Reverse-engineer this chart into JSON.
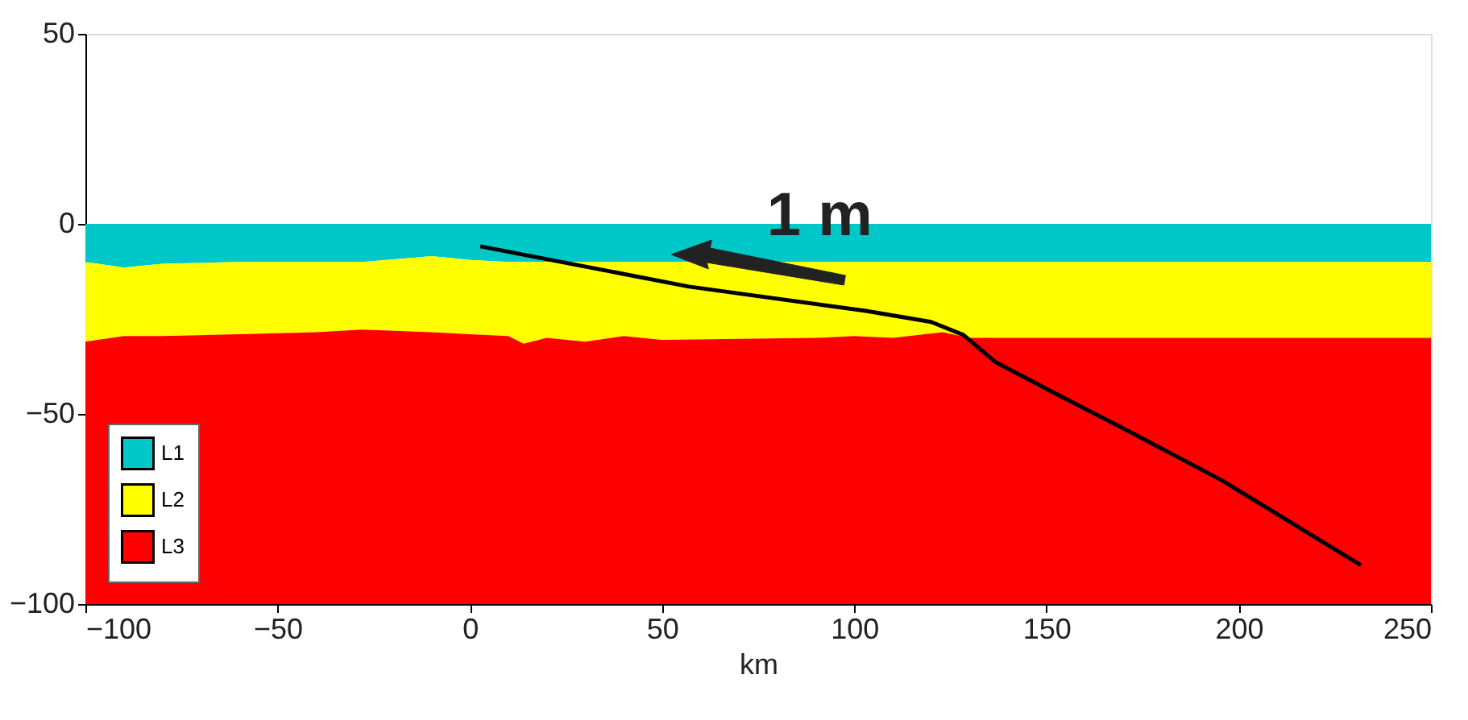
{
  "chart_data": {
    "type": "area",
    "stacked": true,
    "xlabel": "km",
    "x": [
      -100,
      -90,
      -80,
      -60,
      -40,
      -28,
      -10,
      0,
      10,
      14,
      20,
      30,
      40,
      50,
      90,
      100,
      110,
      123,
      130,
      150,
      200,
      250
    ],
    "series": [
      {
        "name": "L1",
        "color": "#00c8c8",
        "values": [
          -10,
          -11.5,
          -10.5,
          -10,
          -10,
          -10,
          -8.5,
          -9.5,
          -10,
          -10,
          -10,
          -10,
          -10,
          -10,
          -10,
          -10,
          -10,
          -10,
          -10,
          -10,
          -10,
          -10
        ]
      },
      {
        "name": "L2",
        "color": "#ffff00",
        "values": [
          -21,
          -18,
          -19,
          -19,
          -18.5,
          -17.8,
          -20,
          -19.5,
          -19.5,
          -21.5,
          -20,
          -21,
          -19.5,
          -20.5,
          -20,
          -19.5,
          -20,
          -18.5,
          -20,
          -20,
          -20,
          -20
        ]
      },
      {
        "name": "L3",
        "color": "#ff0000",
        "values": [
          -69,
          -70.5,
          -70.5,
          -71,
          -71.5,
          -72.2,
          -71.5,
          -71,
          -70.5,
          -68.5,
          -70,
          -69,
          -70.5,
          -69.5,
          -70,
          -70.5,
          -70,
          -71.5,
          -70,
          -70,
          -70,
          -70
        ]
      },
      {
        "type": "line",
        "color": "#000000",
        "x": [
          2.7,
          57,
          103,
          120,
          128.4,
          136.8,
          153.6,
          170,
          195.5,
          231.8
        ],
        "values": [
          -5.9,
          -16.5,
          -22.9,
          -25.8,
          -29.2,
          -36.4,
          -45.3,
          -53.8,
          -67.4,
          -89.8
        ]
      }
    ],
    "xlim": [
      -100,
      250
    ],
    "ylim": [
      -100,
      50
    ],
    "xticks": [
      -100,
      -50,
      0,
      50,
      100,
      150,
      200,
      250
    ],
    "yticks": [
      -100,
      -50,
      0,
      50
    ],
    "legend": "bottom left",
    "annotations": [
      {
        "text": "1 m",
        "x": 91,
        "y": 0
      }
    ]
  }
}
